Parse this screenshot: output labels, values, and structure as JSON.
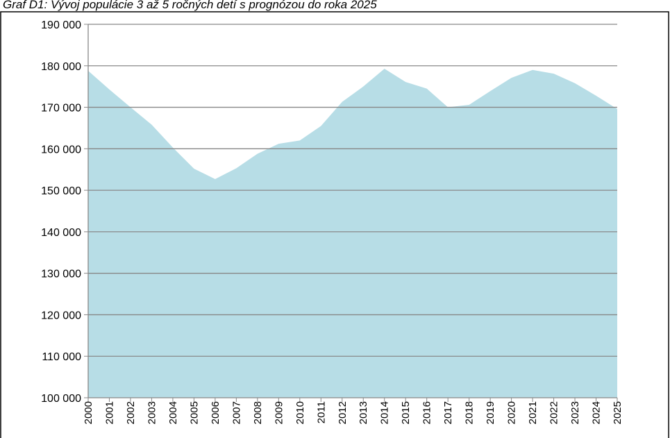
{
  "chart_data": {
    "type": "area",
    "title": "Graf D1: Vývoj populácie 3 až 5 ročných detí s prognózou do roka 2025",
    "categories": [
      "2000",
      "2001",
      "2002",
      "2003",
      "2004",
      "2005",
      "2006",
      "2007",
      "2008",
      "2009",
      "2010",
      "2011",
      "2012",
      "2013",
      "2014",
      "2015",
      "2016",
      "2017",
      "2018",
      "2019",
      "2020",
      "2021",
      "2022",
      "2023",
      "2024",
      "2025"
    ],
    "values": [
      178800,
      174300,
      170000,
      165800,
      160300,
      155200,
      152700,
      155300,
      158800,
      161200,
      162000,
      165500,
      171300,
      175000,
      179300,
      176100,
      174500,
      170000,
      170600,
      173900,
      177100,
      179000,
      178100,
      175800,
      172800,
      169600
    ],
    "color": "#b7dde6",
    "ylim": [
      100000,
      190000
    ],
    "yticks": [
      {
        "value": 100000,
        "label": "100 000"
      },
      {
        "value": 110000,
        "label": "110 000"
      },
      {
        "value": 120000,
        "label": "120 000"
      },
      {
        "value": 130000,
        "label": "130 000"
      },
      {
        "value": 140000,
        "label": "140 000"
      },
      {
        "value": 150000,
        "label": "150 000"
      },
      {
        "value": 160000,
        "label": "160 000"
      },
      {
        "value": 170000,
        "label": "170 000"
      },
      {
        "value": 180000,
        "label": "180 000"
      },
      {
        "value": 190000,
        "label": "190 000"
      }
    ],
    "grid": true
  }
}
